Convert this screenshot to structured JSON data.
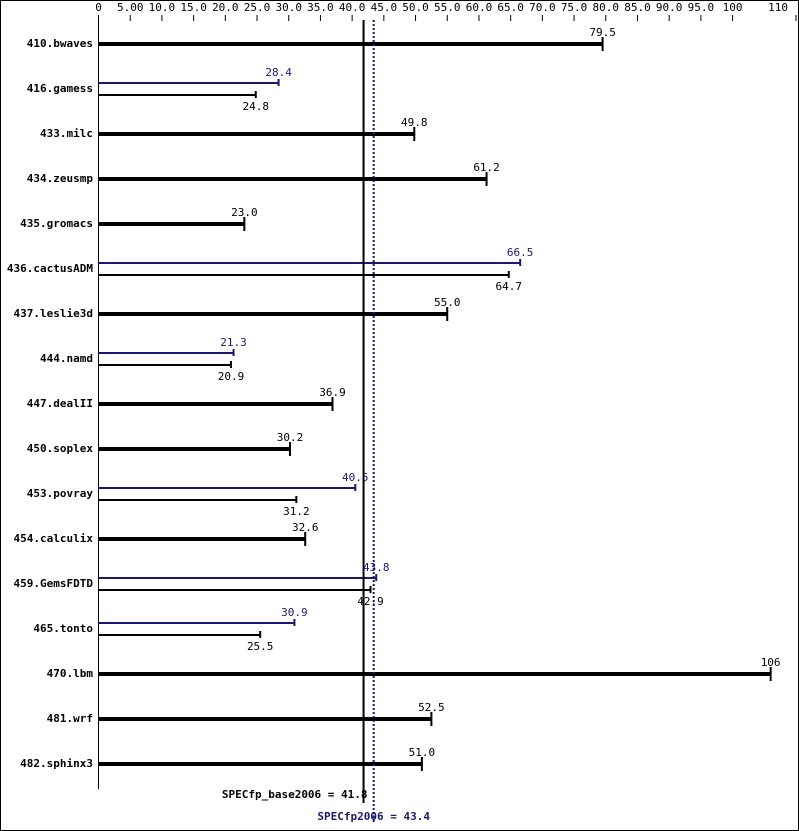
{
  "chart_data": {
    "type": "bar",
    "orientation": "horizontal",
    "categories": [
      "410.bwaves",
      "416.gamess",
      "433.milc",
      "434.zeusmp",
      "435.gromacs",
      "436.cactusADM",
      "437.leslie3d",
      "444.namd",
      "447.dealII",
      "450.soplex",
      "453.povray",
      "454.calculix",
      "459.GemsFDTD",
      "465.tonto",
      "470.lbm",
      "481.wrf",
      "482.sphinx3"
    ],
    "series": [
      {
        "color": "#000000",
        "values": [
          79.5,
          24.8,
          49.8,
          61.2,
          23.0,
          64.7,
          55.0,
          20.9,
          36.9,
          30.2,
          31.2,
          32.6,
          42.9,
          25.5,
          106,
          52.5,
          51.0
        ],
        "value_labels": [
          "79.5",
          "24.8",
          "49.8",
          "61.2",
          "23.0",
          "64.7",
          "55.0",
          "20.9",
          "36.9",
          "30.2",
          "31.2",
          "32.6",
          "42.9",
          "25.5",
          "106",
          "52.5",
          "51.0"
        ]
      },
      {
        "color": "#191970",
        "values": [
          null,
          28.4,
          null,
          null,
          null,
          66.5,
          null,
          21.3,
          null,
          null,
          40.5,
          null,
          43.8,
          30.9,
          null,
          null,
          null
        ]
      }
    ],
    "xlim": [
      0,
      110
    ],
    "xticks": [
      0,
      {
        "value": 5,
        "label": "5.00"
      },
      {
        "value": 10,
        "label": "10.0"
      },
      {
        "value": 15,
        "label": "15.0"
      },
      {
        "value": 20,
        "label": "20.0"
      },
      {
        "value": 25,
        "label": "25.0"
      },
      {
        "value": 30,
        "label": "30.0"
      },
      {
        "value": 35,
        "label": "35.0"
      },
      {
        "value": 40,
        "label": "40.0"
      },
      {
        "value": 45,
        "label": "45.0"
      },
      {
        "value": 50,
        "label": "50.0"
      },
      {
        "value": 55,
        "label": "55.0"
      },
      {
        "value": 60,
        "label": "60.0"
      },
      {
        "value": 65,
        "label": "65.0"
      },
      {
        "value": 70,
        "label": "70.0"
      },
      {
        "value": 75,
        "label": "75.0"
      },
      {
        "value": 80,
        "label": "80.0"
      },
      {
        "value": 85,
        "label": "85.0"
      },
      {
        "value": 90,
        "label": "90.0"
      },
      {
        "value": 95,
        "label": "95.0"
      },
      100,
      110
    ],
    "reference_lines": [
      {
        "label": "SPECfp_base2006 = 41.8",
        "value": 41.8,
        "color": "#000000",
        "style": "solid"
      },
      {
        "label": "SPECfp2006 = 43.4",
        "value": 43.4,
        "color": "#191970",
        "style": "dotted"
      }
    ]
  }
}
